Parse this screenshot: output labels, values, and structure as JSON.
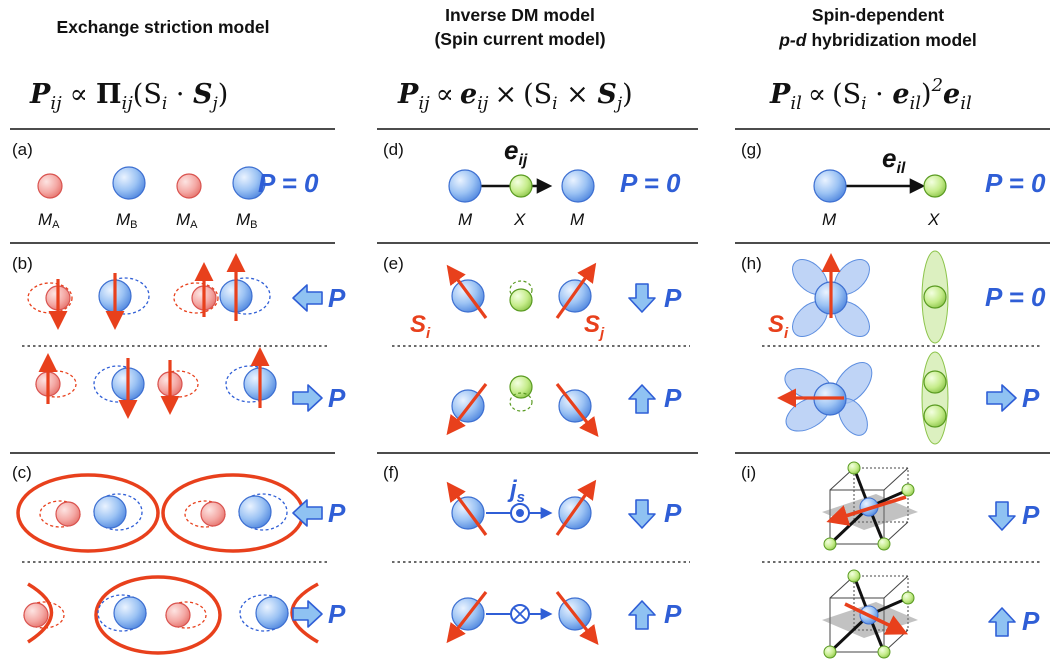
{
  "columns": [
    {
      "title_lines": [
        "Exchange striction model"
      ],
      "equation": {
        "lhs": "P",
        "lhs_sub": "ij",
        "rel": "∝",
        "body": "Π",
        "body_sub": "ij",
        "rest": "(S",
        "s1": "i",
        "dot": " · ",
        "s2": "S",
        "s2sub": "j",
        "close": ")"
      }
    },
    {
      "title_lines": [
        "Inverse DM model",
        "(Spin current model)"
      ],
      "equation": {
        "lhs": "P",
        "lhs_sub": "ij",
        "rel": "∝",
        "e": "e",
        "e_sub": "ij",
        "cross": "×",
        "rest": "(S",
        "s1": "i",
        "cross2": " × ",
        "s2": "S",
        "s2sub": "j",
        "close": ")"
      }
    },
    {
      "title_lines": [
        "Spin-dependent",
        "p-d",
        "hybridization model"
      ],
      "equation": {
        "lhs": "P",
        "lhs_sub": "il",
        "rel": "∝",
        "rest": "(S",
        "s1": "i",
        "dot": " · ",
        "e": "e",
        "e_sub": "il",
        "close": ")",
        "sup": "2",
        "e2": "e",
        "e2_sub": "il"
      }
    }
  ],
  "panels": {
    "a": "(a)",
    "b": "(b)",
    "c": "(c)",
    "d": "(d)",
    "e": "(e)",
    "f": "(f)",
    "g": "(g)",
    "h": "(h)",
    "i": "(i)"
  },
  "atoms": {
    "MA": "M",
    "MA_sub": "A",
    "MB": "M",
    "MB_sub": "B",
    "M": "M",
    "X": "X"
  },
  "labels": {
    "P": "P",
    "P_zero": "P = 0",
    "e_ij": "e",
    "e_ij_sub": "ij",
    "e_il": "e",
    "e_il_sub": "il",
    "S": "S",
    "S_i_sub": "i",
    "S_j_sub": "j",
    "j": "j",
    "j_sub": "s"
  },
  "colors": {
    "red_atom": "#f4a3a0",
    "red_stroke": "#e8401c",
    "blue_atom": "#8db8f2",
    "blue_stroke": "#2f5ed6",
    "green_atom": "#c2ec86",
    "green_stroke": "#5a9b22",
    "arrow_fill": "#8fc2f2"
  },
  "icons": [
    "spin-arrow-icon",
    "polarization-arrow-icon",
    "current-dot-icon",
    "current-cross-icon"
  ]
}
